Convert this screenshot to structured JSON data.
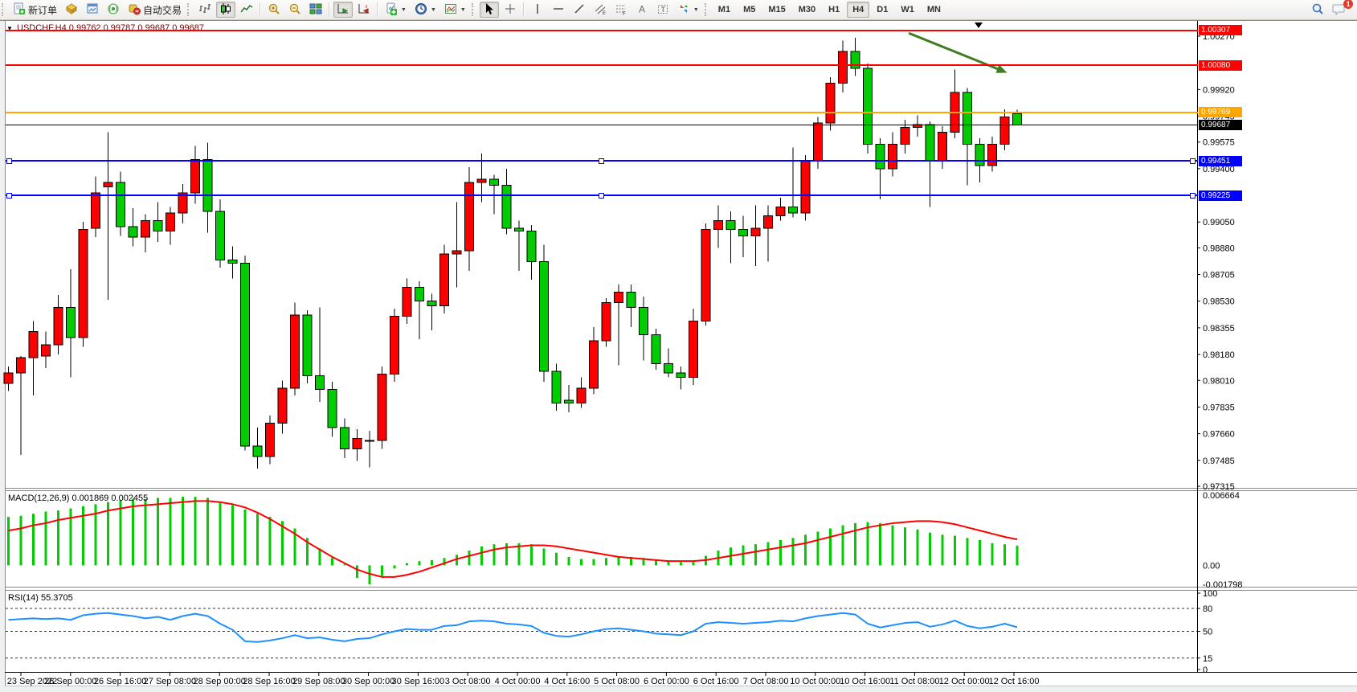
{
  "toolbar": {
    "new_order_label": "新订单",
    "autotrade_label": "自动交易",
    "timeframes": [
      "M1",
      "M5",
      "M15",
      "M30",
      "H1",
      "H4",
      "D1",
      "W1",
      "MN"
    ],
    "active_timeframe": "H4",
    "chat_badge": "1"
  },
  "chart": {
    "title": "USDCHF,H4 0.99762 0.99787 0.99687 0.99687",
    "macd_label": "MACD(12,26,9) 0.001869 0.002455",
    "rsi_label": "RSI(14) 55.3705"
  },
  "chart_data": {
    "type": "candlestick",
    "symbol": "USDCHF",
    "period": "H4",
    "colors": {
      "bull_body": "#ff0000",
      "bear_body": "#00cc00",
      "wick": "#000000",
      "macd_bar": "#00cc00",
      "macd_signal": "#ff0000",
      "rsi_line": "#1e90ff",
      "level_red": "#ff0000",
      "level_orange": "#ffa500",
      "level_blue": "#0000ff",
      "current_price": "#000000",
      "arrow_green": "#3e7d23"
    },
    "price_axis": {
      "ticks": [
        1.0027,
        0.9992,
        0.99745,
        0.99575,
        0.994,
        0.9905,
        0.9888,
        0.98705,
        0.9853,
        0.98355,
        0.9818,
        0.9801,
        0.97835,
        0.9766,
        0.97485,
        0.97315
      ]
    },
    "time_axis": {
      "labels": [
        "23 Sep 2022",
        "26 Sep 00:00",
        "26 Sep 16:00",
        "27 Sep 08:00",
        "28 Sep 00:00",
        "28 Sep 16:00",
        "29 Sep 08:00",
        "30 Sep 00:00",
        "30 Sep 16:00",
        "3 Oct 08:00",
        "4 Oct 00:00",
        "4 Oct 16:00",
        "5 Oct 08:00",
        "6 Oct 00:00",
        "6 Oct 16:00",
        "7 Oct 08:00",
        "10 Oct 00:00",
        "10 Oct 16:00",
        "11 Oct 08:00",
        "12 Oct 00:00",
        "12 Oct 16:00"
      ]
    },
    "price_lines": [
      {
        "label": "1.00307",
        "price": 1.00307,
        "color": "#ff0000",
        "width": 2,
        "handles": false
      },
      {
        "label": "1.00080",
        "price": 1.0008,
        "color": "#ff0000",
        "width": 2,
        "handles": false
      },
      {
        "label": "0.99769",
        "price": 0.99769,
        "color": "#ffa500",
        "width": 2,
        "handles": false
      },
      {
        "label": "0.99687",
        "price": 0.99687,
        "color": "#000000",
        "width": 1,
        "handles": false
      },
      {
        "label": "0.99451",
        "price": 0.99451,
        "color": "#0000ff",
        "width": 2,
        "handles": true
      },
      {
        "label": "0.99225",
        "price": 0.99225,
        "color": "#0000ff",
        "width": 2,
        "handles": true
      }
    ],
    "macd_axis": [
      {
        "label": "0.006664",
        "v": 0.006664
      },
      {
        "label": "0.00",
        "v": 0.0
      },
      {
        "label": "-0.001798",
        "v": -0.001798
      }
    ],
    "rsi_axis": [
      {
        "label": "100",
        "v": 100,
        "dashed": false
      },
      {
        "label": "80",
        "v": 80,
        "dashed": true
      },
      {
        "label": "50",
        "v": 50,
        "dashed": true
      },
      {
        "label": "15",
        "v": 15,
        "dashed": true
      },
      {
        "label": "0",
        "v": 0,
        "dashed": false
      }
    ],
    "candles": [
      [
        0.9799,
        0.981,
        0.9794,
        0.9806
      ],
      [
        0.9806,
        0.9817,
        0.9752,
        0.9816
      ],
      [
        0.9816,
        0.984,
        0.9791,
        0.9833
      ],
      [
        0.9817,
        0.9833,
        0.9809,
        0.98245
      ],
      [
        0.98245,
        0.9857,
        0.9818,
        0.9849
      ],
      [
        0.9849,
        0.9874,
        0.9803,
        0.9829
      ],
      [
        0.9829,
        0.9905,
        0.9823,
        0.99
      ],
      [
        0.9901,
        0.9935,
        0.9895,
        0.9924
      ],
      [
        0.9928,
        0.9964,
        0.9854,
        0.9931
      ],
      [
        0.9931,
        0.9938,
        0.9896,
        0.9902
      ],
      [
        0.9902,
        0.9914,
        0.9889,
        0.9895
      ],
      [
        0.9895,
        0.991,
        0.9885,
        0.9906
      ],
      [
        0.9906,
        0.9918,
        0.9892,
        0.9899
      ],
      [
        0.9899,
        0.9915,
        0.989,
        0.9911
      ],
      [
        0.9911,
        0.993,
        0.9904,
        0.9924
      ],
      [
        0.9924,
        0.9955,
        0.9917,
        0.9946
      ],
      [
        0.9946,
        0.9957,
        0.9898,
        0.9912
      ],
      [
        0.9912,
        0.992,
        0.9875,
        0.988
      ],
      [
        0.988,
        0.9889,
        0.9868,
        0.9878
      ],
      [
        0.9878,
        0.9883,
        0.9755,
        0.9758
      ],
      [
        0.9758,
        0.977,
        0.9743,
        0.9751
      ],
      [
        0.9751,
        0.9778,
        0.9746,
        0.9773
      ],
      [
        0.9773,
        0.9801,
        0.9766,
        0.9796
      ],
      [
        0.9796,
        0.9852,
        0.9791,
        0.9844
      ],
      [
        0.9844,
        0.9847,
        0.9799,
        0.9804
      ],
      [
        0.9804,
        0.9849,
        0.9787,
        0.9795
      ],
      [
        0.9795,
        0.98,
        0.9764,
        0.977
      ],
      [
        0.977,
        0.9776,
        0.975,
        0.9756
      ],
      [
        0.9756,
        0.9769,
        0.9748,
        0.9763
      ],
      [
        0.9761,
        0.9768,
        0.9744,
        0.97615
      ],
      [
        0.97615,
        0.981,
        0.9756,
        0.9805
      ],
      [
        0.9805,
        0.9848,
        0.98,
        0.9843
      ],
      [
        0.9843,
        0.9868,
        0.9838,
        0.9862
      ],
      [
        0.9862,
        0.9866,
        0.9828,
        0.9853
      ],
      [
        0.9853,
        0.9858,
        0.9834,
        0.985
      ],
      [
        0.985,
        0.989,
        0.9845,
        0.9884
      ],
      [
        0.9884,
        0.9918,
        0.9862,
        0.9886
      ],
      [
        0.9886,
        0.9941,
        0.9873,
        0.9931
      ],
      [
        0.9931,
        0.995,
        0.9918,
        0.9933
      ],
      [
        0.9933,
        0.9936,
        0.991,
        0.9929
      ],
      [
        0.9929,
        0.994,
        0.9897,
        0.9901
      ],
      [
        0.9901,
        0.9906,
        0.9873,
        0.9899
      ],
      [
        0.9899,
        0.9903,
        0.9867,
        0.9879
      ],
      [
        0.9879,
        0.989,
        0.98,
        0.9807
      ],
      [
        0.9807,
        0.9812,
        0.9781,
        0.9786
      ],
      [
        0.9788,
        0.9798,
        0.978,
        0.9786
      ],
      [
        0.9786,
        0.9803,
        0.9783,
        0.9796
      ],
      [
        0.9796,
        0.9836,
        0.9792,
        0.9827
      ],
      [
        0.9827,
        0.9855,
        0.9823,
        0.9852
      ],
      [
        0.9852,
        0.9864,
        0.9811,
        0.9859
      ],
      [
        0.9859,
        0.9864,
        0.9836,
        0.9849
      ],
      [
        0.9849,
        0.9856,
        0.9814,
        0.9831
      ],
      [
        0.9831,
        0.9835,
        0.9808,
        0.9812
      ],
      [
        0.9812,
        0.9822,
        0.9803,
        0.9806
      ],
      [
        0.9806,
        0.981,
        0.9795,
        0.9803
      ],
      [
        0.9803,
        0.9848,
        0.9798,
        0.984
      ],
      [
        0.984,
        0.9904,
        0.9837,
        0.99
      ],
      [
        0.99,
        0.9916,
        0.9888,
        0.9906
      ],
      [
        0.9906,
        0.9912,
        0.9878,
        0.99
      ],
      [
        0.99,
        0.9909,
        0.9882,
        0.9896
      ],
      [
        0.9896,
        0.9916,
        0.9876,
        0.9901
      ],
      [
        0.9901,
        0.9916,
        0.9879,
        0.9909
      ],
      [
        0.9909,
        0.9921,
        0.9906,
        0.9915
      ],
      [
        0.9915,
        0.9954,
        0.9908,
        0.9911
      ],
      [
        0.9911,
        0.9949,
        0.9906,
        0.9945
      ],
      [
        0.9945,
        0.9974,
        0.994,
        0.997
      ],
      [
        0.997,
        1.0,
        0.9965,
        0.9996
      ],
      [
        0.9996,
        1.0024,
        0.999,
        1.0017
      ],
      [
        1.0017,
        1.0026,
        1.0001,
        1.0006
      ],
      [
        1.0006,
        1.0009,
        0.995,
        0.9956
      ],
      [
        0.9956,
        0.996,
        0.992,
        0.994
      ],
      [
        0.994,
        0.9964,
        0.9935,
        0.9956
      ],
      [
        0.9956,
        0.9972,
        0.995,
        0.9967
      ],
      [
        0.9967,
        0.9975,
        0.9961,
        0.9969
      ],
      [
        0.9969,
        0.9971,
        0.9915,
        0.9945
      ],
      [
        0.9945,
        0.9968,
        0.994,
        0.9964
      ],
      [
        0.9964,
        1.0005,
        0.996,
        0.999
      ],
      [
        0.999,
        0.9993,
        0.9929,
        0.9956
      ],
      [
        0.9956,
        0.996,
        0.9931,
        0.9942
      ],
      [
        0.9942,
        0.9961,
        0.9938,
        0.9956
      ],
      [
        0.9956,
        0.9979,
        0.9952,
        0.9974
      ],
      [
        0.99762,
        0.99787,
        0.99687,
        0.99687
      ]
    ],
    "macd_histogram": [
      0.0046,
      0.0047,
      0.0049,
      0.0051,
      0.0052,
      0.0054,
      0.0056,
      0.0058,
      0.006,
      0.0062,
      0.0063,
      0.0063,
      0.0064,
      0.0064,
      0.0065,
      0.0065,
      0.0064,
      0.006,
      0.0057,
      0.0053,
      0.0049,
      0.0046,
      0.0042,
      0.0035,
      0.0026,
      0.0016,
      0.0007,
      0.0001,
      -0.0012,
      -0.0018,
      -0.001,
      -0.0003,
      0.0002,
      0.0004,
      0.0005,
      0.0007,
      0.001,
      0.0014,
      0.0018,
      0.002,
      0.0021,
      0.0021,
      0.002,
      0.0016,
      0.0012,
      0.0008,
      0.0006,
      0.0006,
      0.0007,
      0.0008,
      0.0008,
      0.0007,
      0.0005,
      0.0004,
      0.0003,
      0.0004,
      0.0009,
      0.0014,
      0.0017,
      0.0019,
      0.002,
      0.0022,
      0.0024,
      0.0026,
      0.0029,
      0.0032,
      0.0035,
      0.0038,
      0.004,
      0.0041,
      0.004,
      0.0038,
      0.0036,
      0.0034,
      0.0031,
      0.0029,
      0.0028,
      0.0026,
      0.0024,
      0.0021,
      0.002,
      0.00187
    ],
    "macd_signal": [
      0.0033,
      0.0035,
      0.0038,
      0.004,
      0.0043,
      0.0045,
      0.0047,
      0.0049,
      0.0052,
      0.0054,
      0.0056,
      0.0057,
      0.0058,
      0.0059,
      0.006,
      0.0061,
      0.0061,
      0.006,
      0.0058,
      0.0055,
      0.005,
      0.0044,
      0.0037,
      0.003,
      0.0022,
      0.0015,
      0.0008,
      0.0002,
      -0.0004,
      -0.0008,
      -0.0011,
      -0.0011,
      -0.0009,
      -0.0006,
      -0.0002,
      0.0002,
      0.0006,
      0.0009,
      0.0012,
      0.0015,
      0.0017,
      0.0018,
      0.0019,
      0.0019,
      0.0018,
      0.0016,
      0.0014,
      0.0012,
      0.001,
      0.0008,
      0.0007,
      0.0006,
      0.0005,
      0.0004,
      0.0004,
      0.0004,
      0.0005,
      0.0007,
      0.0009,
      0.0011,
      0.0013,
      0.0015,
      0.0017,
      0.0019,
      0.0021,
      0.0024,
      0.0027,
      0.003,
      0.0033,
      0.0036,
      0.0038,
      0.004,
      0.0041,
      0.0042,
      0.0042,
      0.0041,
      0.0039,
      0.0036,
      0.0033,
      0.003,
      0.0027,
      0.00246
    ],
    "rsi_values": [
      65,
      66,
      67,
      66,
      67,
      65,
      71,
      73,
      74,
      72,
      70,
      67,
      69,
      65,
      70,
      73,
      70,
      60,
      52,
      37,
      36,
      38,
      41,
      45,
      41,
      42,
      39,
      37,
      40,
      41,
      46,
      50,
      53,
      52,
      52,
      57,
      58,
      63,
      64,
      63,
      60,
      59,
      57,
      48,
      44,
      43,
      46,
      50,
      53,
      54,
      52,
      50,
      47,
      46,
      45,
      50,
      60,
      62,
      61,
      60,
      61,
      62,
      64,
      63,
      67,
      70,
      72,
      74,
      72,
      60,
      55,
      58,
      61,
      62,
      56,
      59,
      64,
      57,
      54,
      56,
      60,
      55.37
    ],
    "objects": {
      "trend_arrow": {
        "x1_bar": 72.3,
        "p1": 1.0029,
        "x2_bar": 80.2,
        "p2": 1.0003,
        "color": "#3e7d23",
        "width": 3
      },
      "anchor_marker": {
        "bar": 77.9
      }
    }
  }
}
